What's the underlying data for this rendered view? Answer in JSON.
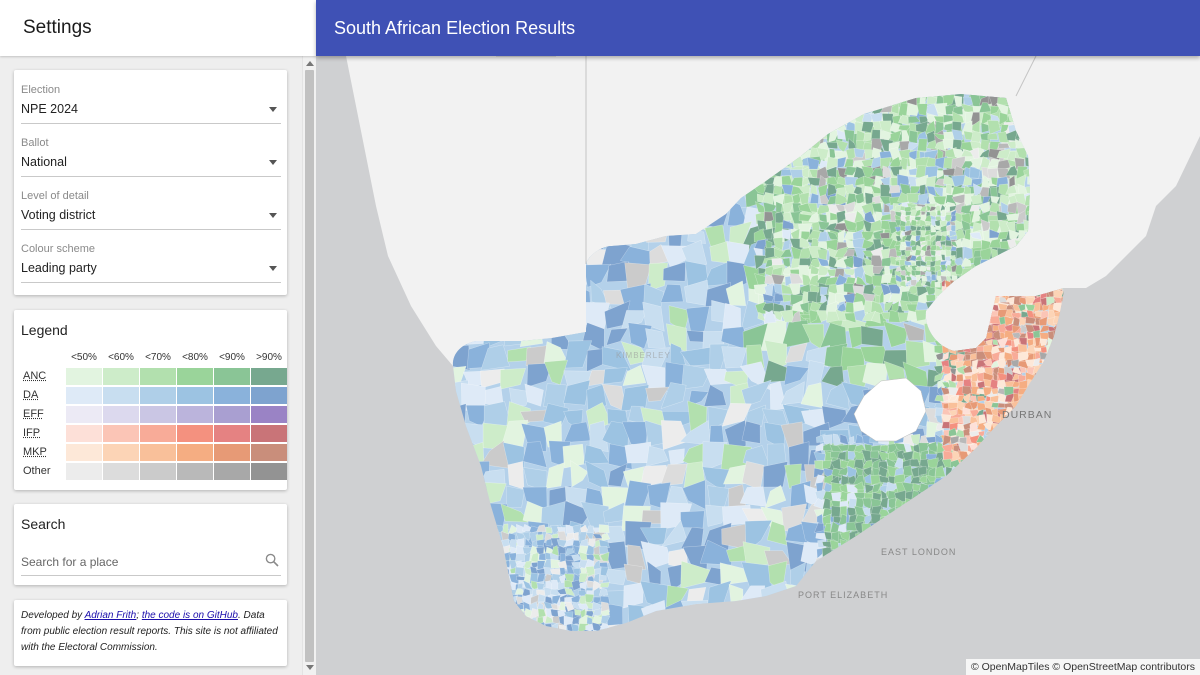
{
  "sidebar": {
    "title": "Settings",
    "fields": [
      {
        "label": "Election",
        "value": "NPE 2024"
      },
      {
        "label": "Ballot",
        "value": "National"
      },
      {
        "label": "Level of detail",
        "value": "Voting district"
      },
      {
        "label": "Colour scheme",
        "value": "Leading party"
      }
    ],
    "legend": {
      "title": "Legend",
      "columns": [
        "<50%",
        "<60%",
        "<70%",
        "<80%",
        "<90%",
        ">90%"
      ],
      "rows": [
        {
          "party": "ANC",
          "colors": [
            "#e2f4e0",
            "#cdecc9",
            "#b2e0ae",
            "#9ad49a",
            "#8ac596",
            "#77a88f"
          ]
        },
        {
          "party": "DA",
          "colors": [
            "#deeaf7",
            "#c8def0",
            "#afcfe8",
            "#9cc3e2",
            "#8ab2db",
            "#7ea3cf"
          ]
        },
        {
          "party": "EFF",
          "colors": [
            "#eceaf5",
            "#dcd9ee",
            "#cac6e4",
            "#bbb4dc",
            "#a99fd1",
            "#9a83c5"
          ]
        },
        {
          "party": "IFP",
          "colors": [
            "#fde0d8",
            "#fbc5b6",
            "#f8ab98",
            "#f4917f",
            "#e58282",
            "#c97478"
          ]
        },
        {
          "party": "MKP",
          "colors": [
            "#fde8d8",
            "#fcd4b6",
            "#f9c09a",
            "#f5ad82",
            "#e79a76",
            "#c98e7b"
          ]
        },
        {
          "party": "Other",
          "colors": [
            "#ececec",
            "#dcdcdc",
            "#cbcbcb",
            "#b9b9b9",
            "#a8a8a8",
            "#939393"
          ]
        }
      ]
    },
    "search": {
      "title": "Search",
      "placeholder": "Search for a place"
    },
    "credits": {
      "prefix": "Developed by ",
      "author": "Adrian Frith",
      "mid": "; ",
      "code_link": "the code is on GitHub",
      "suffix": ". Data from public election result reports. This site is not affiliated with the Electoral Commission."
    }
  },
  "header": {
    "title": "South African Election Results"
  },
  "map": {
    "labels": {
      "durban": "DURBAN",
      "east_london": "EAST LONDON",
      "port_elizabeth": "PORT ELIZABETH",
      "kimberley": "KIMBERLEY"
    },
    "attribution": "© OpenMapTiles © OpenStreetMap contributors",
    "colors": {
      "sea": "#cfd0d2",
      "land": "#f2f2f2",
      "lesotho": "#ffffff"
    }
  }
}
